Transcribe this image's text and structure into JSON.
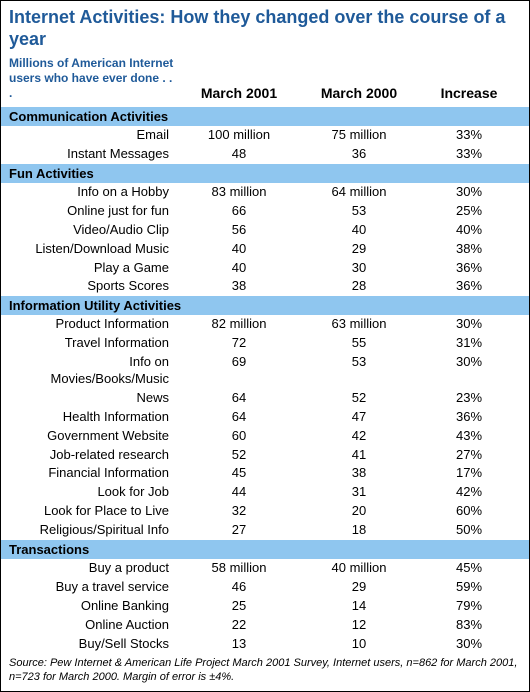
{
  "title": "Internet Activities: How they changed over the course of a year",
  "stub_header": "Millions of American Internet users who have ever done . . .",
  "columns": {
    "a": "March 2001",
    "b": "March 2000",
    "c": "Increase"
  },
  "colors": {
    "title": "#1f5a99",
    "section_bg": "#8fc6ef",
    "border": "#000000",
    "text": "#000000",
    "background": "#ffffff"
  },
  "sections": [
    {
      "name": "Communication Activities",
      "rows": [
        {
          "label": "Email",
          "a": "100 million",
          "b": "75 million",
          "c": "33%"
        },
        {
          "label": "Instant Messages",
          "a": "48",
          "b": "36",
          "c": "33%"
        }
      ]
    },
    {
      "name": "Fun Activities",
      "rows": [
        {
          "label": "Info on a Hobby",
          "a": "83 million",
          "b": "64 million",
          "c": "30%"
        },
        {
          "label": "Online just for fun",
          "a": "66",
          "b": "53",
          "c": "25%"
        },
        {
          "label": "Video/Audio Clip",
          "a": "56",
          "b": "40",
          "c": "40%"
        },
        {
          "label": "Listen/Download Music",
          "a": "40",
          "b": "29",
          "c": "38%"
        },
        {
          "label": "Play a Game",
          "a": "40",
          "b": "30",
          "c": "36%"
        },
        {
          "label": "Sports Scores",
          "a": "38",
          "b": "28",
          "c": "36%"
        }
      ]
    },
    {
      "name": "Information Utility Activities",
      "rows": [
        {
          "label": "Product Information",
          "a": "82 million",
          "b": "63 million",
          "c": "30%"
        },
        {
          "label": "Travel Information",
          "a": "72",
          "b": "55",
          "c": "31%"
        },
        {
          "label": "Info on Movies/Books/Music",
          "a": "69",
          "b": "53",
          "c": "30%"
        },
        {
          "label": "News",
          "a": "64",
          "b": "52",
          "c": "23%"
        },
        {
          "label": "Health Information",
          "a": "64",
          "b": "47",
          "c": "36%"
        },
        {
          "label": "Government Website",
          "a": "60",
          "b": "42",
          "c": "43%"
        },
        {
          "label": "Job-related research",
          "a": "52",
          "b": "41",
          "c": "27%"
        },
        {
          "label": "Financial Information",
          "a": "45",
          "b": "38",
          "c": "17%"
        },
        {
          "label": "Look for Job",
          "a": "44",
          "b": "31",
          "c": "42%"
        },
        {
          "label": "Look for Place to Live",
          "a": "32",
          "b": "20",
          "c": "60%"
        },
        {
          "label": "Religious/Spiritual Info",
          "a": "27",
          "b": "18",
          "c": "50%"
        }
      ]
    },
    {
      "name": "Transactions",
      "rows": [
        {
          "label": "Buy a product",
          "a": "58 million",
          "b": "40 million",
          "c": "45%"
        },
        {
          "label": "Buy a travel service",
          "a": "46",
          "b": "29",
          "c": "59%"
        },
        {
          "label": "Online Banking",
          "a": "25",
          "b": "14",
          "c": "79%"
        },
        {
          "label": "Online Auction",
          "a": "22",
          "b": "12",
          "c": "83%"
        },
        {
          "label": "Buy/Sell Stocks",
          "a": "13",
          "b": "10",
          "c": "30%"
        }
      ]
    }
  ],
  "footnote": "Source: Pew Internet & American Life Project March 2001 Survey, Internet users, n=862 for March 2001, n=723 for March 2000. Margin of error is ±4%."
}
